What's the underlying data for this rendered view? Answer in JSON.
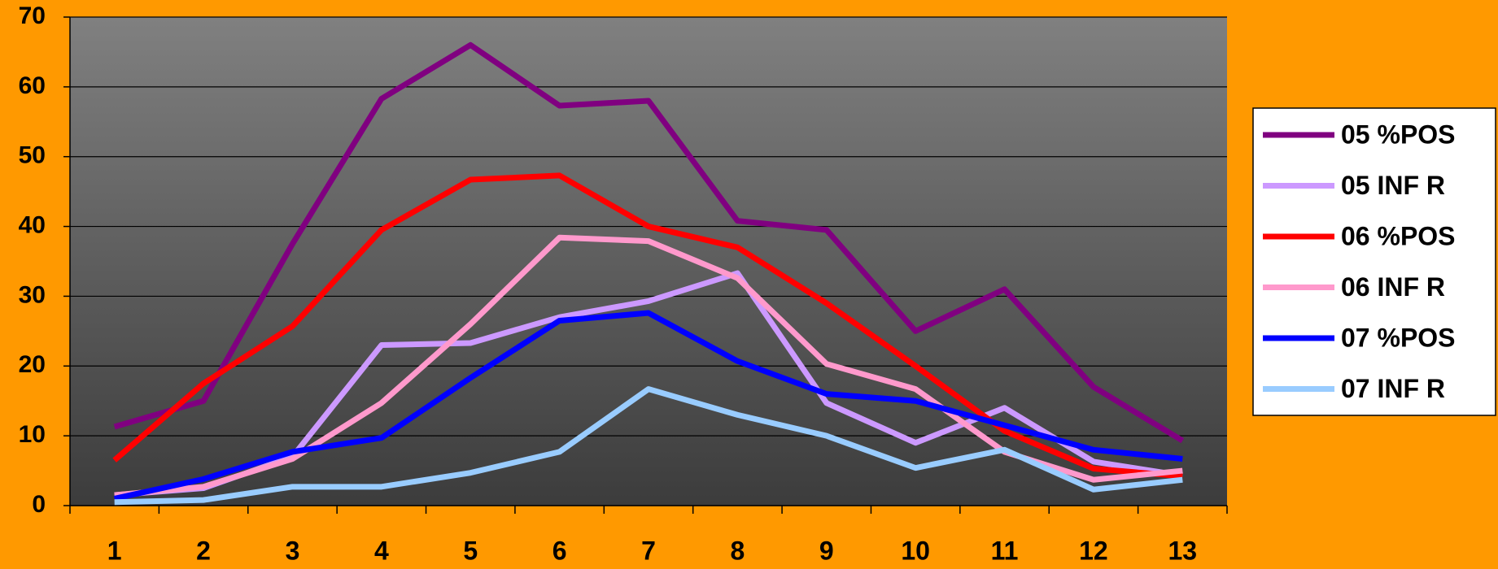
{
  "chart_data": {
    "type": "line",
    "categories": [
      "1",
      "2",
      "3",
      "4",
      "5",
      "6",
      "7",
      "8",
      "9",
      "10",
      "11",
      "12",
      "13"
    ],
    "series": [
      {
        "name": "05 %POS",
        "color": "#800080",
        "values": [
          11.3,
          15,
          37.5,
          58.3,
          66,
          57.3,
          58,
          40.8,
          39.5,
          25,
          31,
          17,
          9.3
        ]
      },
      {
        "name": "05 INF R",
        "color": "#cc99ff",
        "values": [
          1.5,
          2.5,
          7,
          23,
          23.3,
          27,
          29.3,
          33.3,
          14.7,
          9,
          14,
          6.3,
          4.3
        ]
      },
      {
        "name": "06 %POS",
        "color": "#ff0000",
        "values": [
          6.5,
          17.5,
          25.7,
          39.5,
          46.7,
          47.3,
          40,
          37,
          29,
          20,
          10.7,
          5.3,
          4.2
        ]
      },
      {
        "name": "06 INF R",
        "color": "#ff99cc",
        "values": [
          1.5,
          2.7,
          6.7,
          14.7,
          26,
          38.4,
          37.9,
          32.6,
          20.3,
          16.7,
          7.7,
          3.7,
          5
        ]
      },
      {
        "name": "07 %POS",
        "color": "#0000ff",
        "values": [
          1,
          3.8,
          7.7,
          9.7,
          18.3,
          26.5,
          27.6,
          20.7,
          16,
          15,
          11.5,
          8,
          6.7
        ]
      },
      {
        "name": "07 INF R",
        "color": "#99ccff",
        "values": [
          0.5,
          0.8,
          2.7,
          2.7,
          4.7,
          7.7,
          16.7,
          13,
          10,
          5.4,
          8,
          2.3,
          3.7
        ]
      }
    ],
    "ylim": [
      0,
      70
    ],
    "yticks": [
      0,
      10,
      20,
      30,
      40,
      50,
      60,
      70
    ],
    "grid": true,
    "legend": "right"
  }
}
